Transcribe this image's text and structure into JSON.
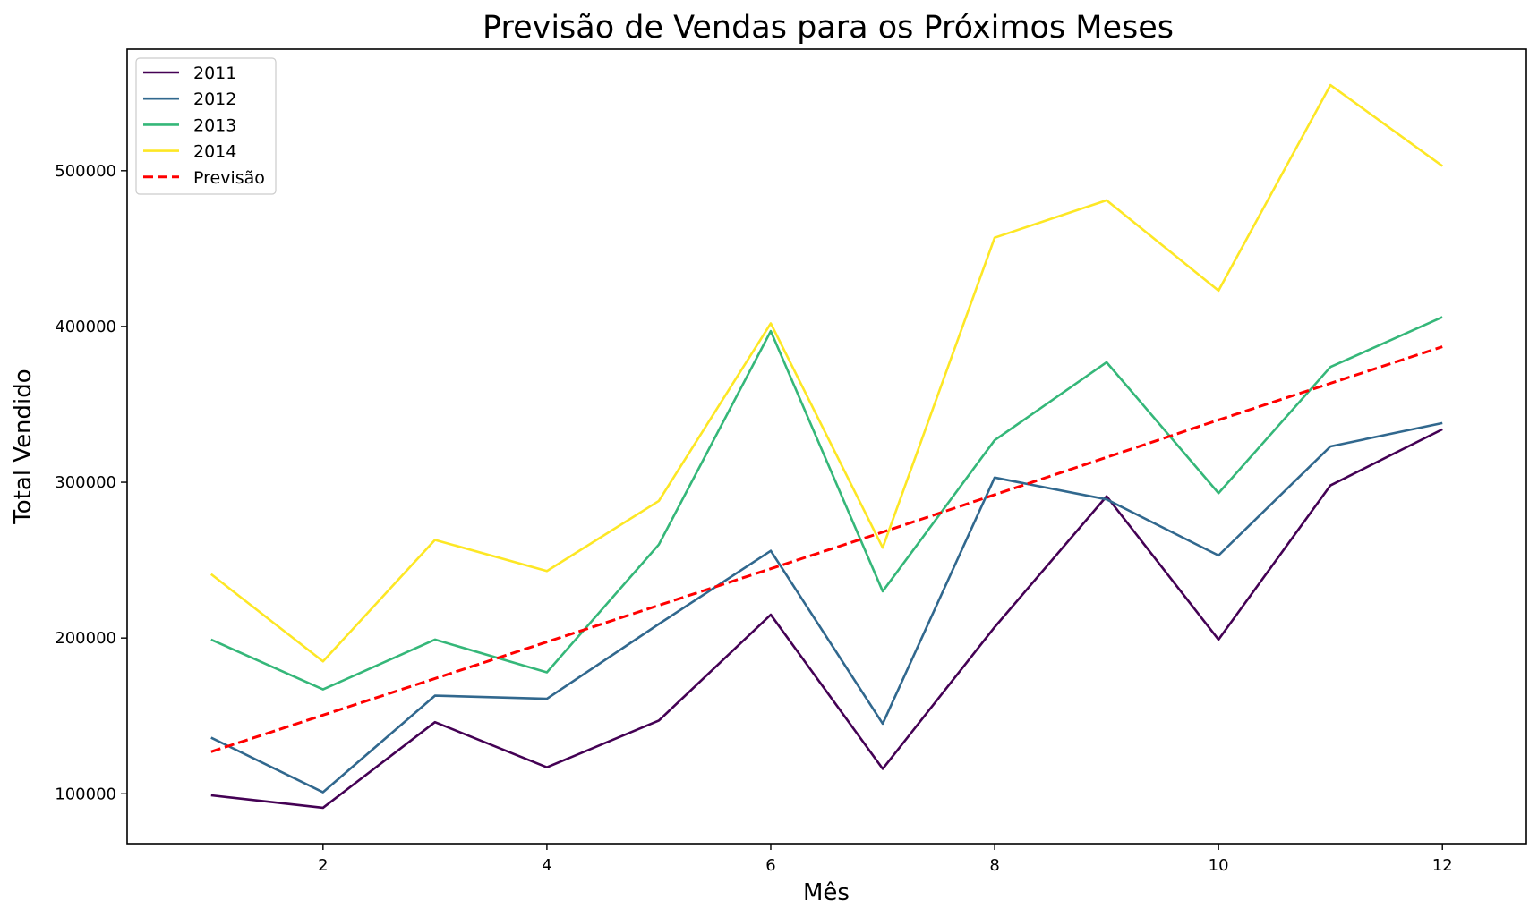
{
  "chart_data": {
    "type": "line",
    "title": "Previsão de Vendas para os Próximos Meses",
    "xlabel": "Mês",
    "ylabel": "Total Vendido",
    "x": [
      1,
      2,
      3,
      4,
      5,
      6,
      7,
      8,
      9,
      10,
      11,
      12
    ],
    "xlim": [
      0.25,
      12.75
    ],
    "ylim": [
      68000,
      578000
    ],
    "xticks": [
      2,
      4,
      6,
      8,
      10,
      12
    ],
    "yticks": [
      100000,
      200000,
      300000,
      400000,
      500000
    ],
    "grid": false,
    "legend_position": "upper-left",
    "series": [
      {
        "name": "2011",
        "color": "#440154",
        "style": "solid",
        "values": [
          99000,
          91000,
          146000,
          117000,
          147000,
          215000,
          116000,
          207000,
          291000,
          199000,
          298000,
          334000
        ]
      },
      {
        "name": "2012",
        "color": "#31688e",
        "style": "solid",
        "values": [
          136000,
          101000,
          163000,
          161000,
          209000,
          256000,
          145000,
          303000,
          289000,
          253000,
          323000,
          338000
        ]
      },
      {
        "name": "2013",
        "color": "#35b779",
        "style": "solid",
        "values": [
          199000,
          167000,
          199000,
          178000,
          260000,
          397000,
          230000,
          327000,
          377000,
          293000,
          374000,
          406000
        ]
      },
      {
        "name": "2014",
        "color": "#fde725",
        "style": "solid",
        "values": [
          241000,
          185000,
          263000,
          243000,
          288000,
          402000,
          258000,
          457000,
          481000,
          423000,
          555000,
          503000
        ]
      },
      {
        "name": "Previsão",
        "color": "#ff0000",
        "style": "dashed",
        "values": [
          127000,
          150500,
          174000,
          197500,
          221000,
          244500,
          268000,
          292000,
          316000,
          340000,
          363500,
          387000
        ]
      }
    ]
  }
}
